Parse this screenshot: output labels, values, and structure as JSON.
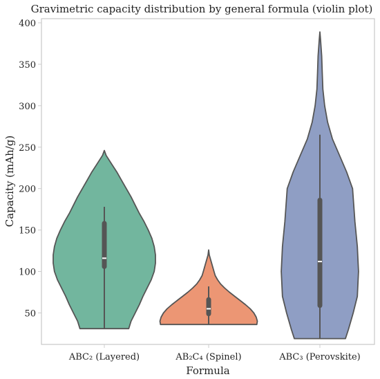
{
  "chart_data": {
    "type": "violin",
    "title": "Gravimetric capacity distribution by general formula (violin plot)",
    "xlabel": "Formula",
    "ylabel": "Capacity (mAh/g)",
    "ylim": [
      12,
      405
    ],
    "yticks": [
      50,
      100,
      150,
      200,
      250,
      300,
      350,
      400
    ],
    "grid": false,
    "categories": [
      "ABC₂ (Layered)",
      "AB₂C₄ (Spinel)",
      "ABC₃ (Perovskite)"
    ],
    "colors": [
      "#72b69e",
      "#ec9674",
      "#8f9ec4"
    ],
    "edge_color": "#555555",
    "violins": [
      {
        "category": "ABC₂ (Layered)",
        "min": 31,
        "max": 246,
        "q1": 103,
        "median": 116,
        "q3": 161,
        "whisker_low": 31,
        "whisker_high": 178,
        "profile": [
          [
            31,
            41
          ],
          [
            40,
            45
          ],
          [
            50,
            52
          ],
          [
            60,
            59
          ],
          [
            70,
            65
          ],
          [
            80,
            72
          ],
          [
            90,
            79
          ],
          [
            100,
            84
          ],
          [
            110,
            86
          ],
          [
            120,
            86
          ],
          [
            130,
            84
          ],
          [
            140,
            80
          ],
          [
            150,
            74
          ],
          [
            160,
            67
          ],
          [
            170,
            59
          ],
          [
            180,
            52
          ],
          [
            190,
            45
          ],
          [
            200,
            37
          ],
          [
            210,
            29
          ],
          [
            220,
            21
          ],
          [
            230,
            12
          ],
          [
            240,
            3
          ],
          [
            246,
            0
          ]
        ]
      },
      {
        "category": "AB₂C₄ (Spinel)",
        "min": 36,
        "max": 126,
        "q1": 46,
        "median": 55,
        "q3": 69,
        "whisker_low": 36,
        "whisker_high": 82,
        "profile": [
          [
            36,
            81
          ],
          [
            40,
            82
          ],
          [
            45,
            80
          ],
          [
            50,
            76
          ],
          [
            55,
            70
          ],
          [
            60,
            62
          ],
          [
            65,
            53
          ],
          [
            70,
            44
          ],
          [
            75,
            35
          ],
          [
            80,
            27
          ],
          [
            85,
            20
          ],
          [
            90,
            15
          ],
          [
            95,
            11
          ],
          [
            100,
            9
          ],
          [
            105,
            7
          ],
          [
            110,
            5
          ],
          [
            115,
            3
          ],
          [
            120,
            1
          ],
          [
            126,
            0
          ]
        ]
      },
      {
        "category": "ABC₃ (Perovskite)",
        "min": 19,
        "max": 389,
        "q1": 56,
        "median": 112,
        "q3": 189,
        "whisker_low": 19,
        "whisker_high": 265,
        "profile": [
          [
            19,
            43
          ],
          [
            30,
            48
          ],
          [
            50,
            56
          ],
          [
            70,
            63
          ],
          [
            100,
            65
          ],
          [
            130,
            63
          ],
          [
            160,
            59
          ],
          [
            180,
            57
          ],
          [
            200,
            55
          ],
          [
            220,
            45
          ],
          [
            240,
            33
          ],
          [
            260,
            21
          ],
          [
            280,
            13
          ],
          [
            300,
            8
          ],
          [
            320,
            5
          ],
          [
            340,
            4
          ],
          [
            360,
            3
          ],
          [
            380,
            1
          ],
          [
            389,
            0
          ]
        ]
      }
    ]
  }
}
